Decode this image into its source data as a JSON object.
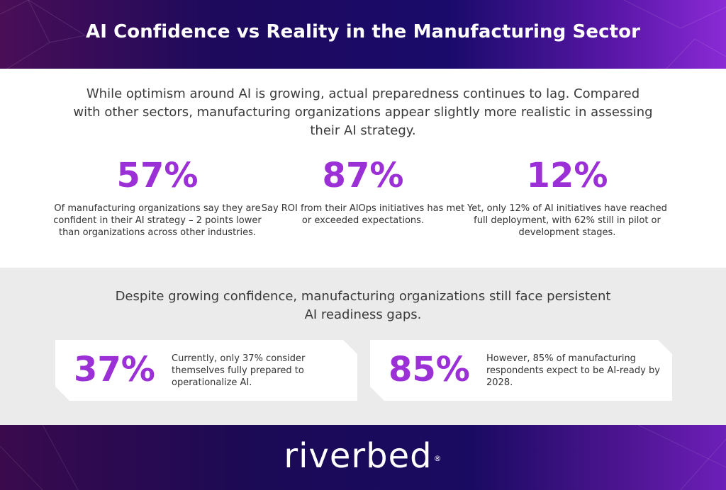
{
  "header": {
    "title": "AI Confidence vs Reality in the Manufacturing Sector"
  },
  "intro": {
    "text": "While optimism around AI is growing, actual preparedness continues to lag. Compared with other sectors, manufacturing organizations appear slightly more realistic in assessing their AI strategy."
  },
  "stats": [
    {
      "value": "57%",
      "description": "Of manufacturing organizations say they are confident in their AI strategy – 2 points lower than organizations across other industries."
    },
    {
      "value": "87%",
      "description": "Say ROI from their AIOps initiatives has met or exceeded expectations."
    },
    {
      "value": "12%",
      "description": "Yet, only 12% of AI initiatives have reached full deployment, with 62% still in pilot or development stages."
    }
  ],
  "gaps": {
    "heading": "Despite growing confidence, manufacturing organizations still face persistent AI readiness gaps.",
    "cards": [
      {
        "value": "37%",
        "description": "Currently, only 37% consider themselves fully prepared to operationalize AI."
      },
      {
        "value": "85%",
        "description": "However, 85% of manufacturing respondents expect to be AI-ready by 2028."
      }
    ]
  },
  "footer": {
    "logo_text": "riverbed",
    "logo_mark": "®"
  },
  "colors": {
    "accent": "#9b30d6",
    "text": "#333333",
    "section_bg": "#ebebeb"
  }
}
